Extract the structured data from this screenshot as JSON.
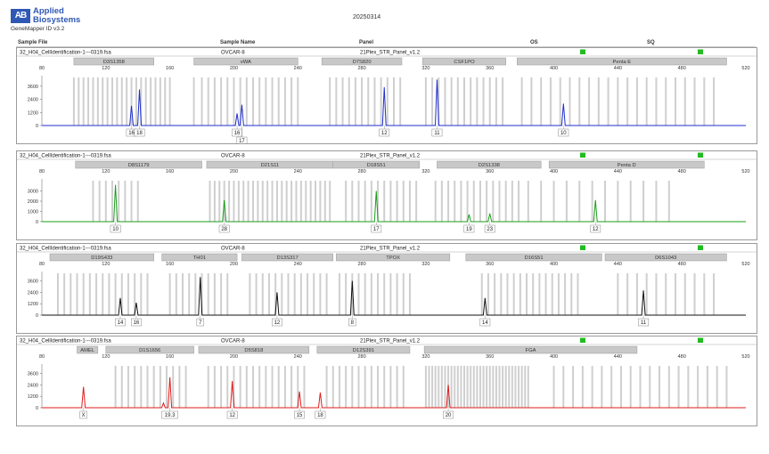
{
  "header": {
    "logo_mark": "AB",
    "brand_line1": "Applied",
    "brand_line2": "Biosystems",
    "app_version": "GeneMapper ID v3.2",
    "date": "20250314",
    "columns": [
      "Sample File",
      "Sample Name",
      "Panel",
      "OS",
      "SQ"
    ]
  },
  "colors": {
    "blue": "#1f2fcf",
    "green": "#1a9e1a",
    "black": "#111111",
    "red": "#e01b1b",
    "status": "#22bb22",
    "marker_fill": "#c8c8c8",
    "bin_line": "#cfcfcf"
  },
  "chart_data": [
    {
      "type": "line",
      "dye": "blue",
      "color": "#1f2fcf",
      "sample_file": "32_H04_CellIdentification-1---0319.fsa",
      "sample_name": "OVCAR-8",
      "panel": "21Plex_STR_Panel_v1.2",
      "xlim": [
        80,
        520
      ],
      "x_ticks": [
        80,
        120,
        160,
        200,
        240,
        280,
        320,
        360,
        400,
        440,
        480,
        520
      ],
      "ylim": [
        0,
        4400
      ],
      "y_ticks": [
        0,
        1200,
        2400,
        3600
      ],
      "markers": [
        {
          "name": "D3S1358",
          "start": 100,
          "end": 150
        },
        {
          "name": "vWA",
          "start": 175,
          "end": 240
        },
        {
          "name": "D7S820",
          "start": 255,
          "end": 305
        },
        {
          "name": "CSF1PO",
          "start": 318,
          "end": 370
        },
        {
          "name": "Penta E",
          "start": 377,
          "end": 508
        }
      ],
      "peaks": [
        {
          "x": 136,
          "y": 1800,
          "label": "16",
          "row": 1
        },
        {
          "x": 141,
          "y": 3300,
          "label": "18",
          "row": 1
        },
        {
          "x": 202,
          "y": 1100,
          "label": "16",
          "row": 1
        },
        {
          "x": 205,
          "y": 1900,
          "label": "17",
          "row": 2
        },
        {
          "x": 294,
          "y": 3500,
          "label": "12",
          "row": 1
        },
        {
          "x": 327,
          "y": 4200,
          "label": "11",
          "row": 1
        },
        {
          "x": 406,
          "y": 2000,
          "label": "10",
          "row": 1
        }
      ],
      "bins": [
        100,
        103,
        106,
        109,
        112,
        115,
        118,
        121,
        124,
        127,
        130,
        133,
        136,
        139,
        142,
        145,
        148,
        151,
        154,
        157,
        160,
        175,
        180,
        184,
        188,
        192,
        196,
        200,
        204,
        208,
        212,
        216,
        220,
        224,
        228,
        232,
        236,
        240,
        260,
        264,
        268,
        272,
        276,
        280,
        284,
        288,
        292,
        296,
        300,
        304,
        320,
        324,
        328,
        332,
        336,
        340,
        344,
        348,
        352,
        356,
        360,
        364,
        368,
        380,
        386,
        392,
        398,
        404,
        410,
        416,
        422,
        428,
        434,
        440,
        446,
        452,
        458,
        464,
        470,
        476,
        482,
        488,
        494,
        500
      ]
    },
    {
      "type": "line",
      "dye": "green",
      "color": "#1a9e1a",
      "sample_file": "32_H04_CellIdentification-1---0319.fsa",
      "sample_name": "OVCAR-8",
      "panel": "21Plex_STR_Panel_v1.2",
      "xlim": [
        80,
        520
      ],
      "x_ticks": [
        80,
        120,
        160,
        200,
        240,
        280,
        320,
        360,
        400,
        440,
        480,
        520
      ],
      "ylim": [
        0,
        4000
      ],
      "y_ticks": [
        0,
        1000,
        2000,
        3000
      ],
      "markers": [
        {
          "name": "D8S1179",
          "start": 101,
          "end": 180
        },
        {
          "name": "D21S11",
          "start": 183,
          "end": 262
        },
        {
          "name": "D18S51",
          "start": 262,
          "end": 316
        },
        {
          "name": "D2S1338",
          "start": 327,
          "end": 392
        },
        {
          "name": "Penta D",
          "start": 397,
          "end": 494
        }
      ],
      "peaks": [
        {
          "x": 126,
          "y": 3600,
          "label": "10",
          "row": 1
        },
        {
          "x": 194,
          "y": 2100,
          "label": "28",
          "row": 1
        },
        {
          "x": 289,
          "y": 3000,
          "label": "17",
          "row": 1
        },
        {
          "x": 347,
          "y": 700,
          "label": "19",
          "row": 1
        },
        {
          "x": 360,
          "y": 800,
          "label": "23",
          "row": 1
        },
        {
          "x": 426,
          "y": 2100,
          "label": "12",
          "row": 1
        }
      ],
      "bins": [
        112,
        116,
        120,
        124,
        128,
        132,
        136,
        140,
        185,
        188,
        191,
        194,
        197,
        200,
        203,
        206,
        209,
        212,
        215,
        218,
        221,
        224,
        227,
        230,
        233,
        236,
        239,
        242,
        245,
        248,
        251,
        254,
        257,
        260,
        270,
        274,
        278,
        282,
        286,
        290,
        294,
        298,
        302,
        306,
        310,
        314,
        326,
        330,
        334,
        338,
        342,
        346,
        350,
        354,
        358,
        362,
        366,
        370,
        374,
        378,
        384,
        392,
        400,
        408,
        416,
        424,
        432,
        440,
        448,
        456,
        464,
        472
      ]
    },
    {
      "type": "line",
      "dye": "black",
      "color": "#111111",
      "sample_file": "32_H04_CellIdentification-1---0319.fsa",
      "sample_name": "OVCAR-8",
      "panel": "21Plex_STR_Panel_v1.2",
      "xlim": [
        80,
        520
      ],
      "x_ticks": [
        80,
        120,
        160,
        200,
        240,
        280,
        320,
        360,
        400,
        440,
        480,
        520
      ],
      "ylim": [
        0,
        4400
      ],
      "y_ticks": [
        0,
        1200,
        2400,
        3600
      ],
      "markers": [
        {
          "name": "D19S433",
          "start": 85,
          "end": 150
        },
        {
          "name": "TH01",
          "start": 155,
          "end": 202
        },
        {
          "name": "D13S317",
          "start": 205,
          "end": 262
        },
        {
          "name": "TPOX",
          "start": 264,
          "end": 335
        },
        {
          "name": "D16S51",
          "start": 345,
          "end": 430
        },
        {
          "name": "D6S1043",
          "start": 432,
          "end": 508
        }
      ],
      "peaks": [
        {
          "x": 129,
          "y": 1800,
          "label": "14",
          "row": 1
        },
        {
          "x": 139,
          "y": 1300,
          "label": "16",
          "row": 1
        },
        {
          "x": 179,
          "y": 4000,
          "label": "7",
          "row": 1
        },
        {
          "x": 227,
          "y": 2400,
          "label": "12",
          "row": 1
        },
        {
          "x": 274,
          "y": 3600,
          "label": "8",
          "row": 1
        },
        {
          "x": 357,
          "y": 1800,
          "label": "14",
          "row": 1
        },
        {
          "x": 456,
          "y": 2600,
          "label": "11",
          "row": 1
        }
      ],
      "bins": [
        90,
        94,
        98,
        102,
        106,
        110,
        114,
        118,
        122,
        126,
        130,
        134,
        138,
        142,
        146,
        160,
        164,
        168,
        172,
        176,
        180,
        184,
        188,
        192,
        196,
        210,
        214,
        218,
        222,
        226,
        230,
        234,
        238,
        242,
        246,
        250,
        254,
        258,
        266,
        270,
        274,
        278,
        282,
        286,
        290,
        294,
        298,
        302,
        306,
        310,
        355,
        359,
        363,
        367,
        371,
        375,
        379,
        383,
        387,
        391,
        395,
        399,
        403,
        407,
        411,
        415,
        440,
        446,
        452,
        458,
        464,
        470,
        476,
        482,
        488,
        494,
        500
      ]
    },
    {
      "type": "line",
      "dye": "red",
      "color": "#e01b1b",
      "sample_file": "32_H04_CellIdentification-1---0319.fsa",
      "sample_name": "OVCAR-8",
      "panel": "21Plex_STR_Panel_v1.2",
      "xlim": [
        80,
        520
      ],
      "x_ticks": [
        80,
        120,
        160,
        200,
        240,
        280,
        320,
        360,
        400,
        440,
        480,
        520
      ],
      "ylim": [
        0,
        4400
      ],
      "y_ticks": [
        0,
        1200,
        2400,
        3600
      ],
      "markers": [
        {
          "name": "AMEL",
          "start": 102,
          "end": 115
        },
        {
          "name": "D1S1656",
          "start": 120,
          "end": 175
        },
        {
          "name": "D5S818",
          "start": 178,
          "end": 247
        },
        {
          "name": "D12S391",
          "start": 252,
          "end": 310
        },
        {
          "name": "FGA",
          "start": 319,
          "end": 452
        }
      ],
      "peaks": [
        {
          "x": 106,
          "y": 2200,
          "label": "X",
          "row": 1
        },
        {
          "x": 156,
          "y": 500,
          "label": "",
          "row": 1
        },
        {
          "x": 160,
          "y": 3200,
          "label": "19.3",
          "row": 1
        },
        {
          "x": 199,
          "y": 2800,
          "label": "12",
          "row": 1
        },
        {
          "x": 241,
          "y": 1700,
          "label": "15",
          "row": 1
        },
        {
          "x": 254,
          "y": 1600,
          "label": "18",
          "row": 1
        },
        {
          "x": 334,
          "y": 2400,
          "label": "20",
          "row": 1
        }
      ],
      "bins": [
        126,
        130,
        134,
        138,
        142,
        146,
        150,
        154,
        158,
        162,
        166,
        170,
        184,
        188,
        192,
        196,
        200,
        204,
        208,
        212,
        216,
        220,
        224,
        228,
        232,
        236,
        240,
        244,
        258,
        262,
        266,
        270,
        274,
        278,
        282,
        286,
        290,
        294,
        298,
        302,
        306,
        320,
        322,
        324,
        326,
        328,
        330,
        332,
        334,
        336,
        338,
        340,
        342,
        344,
        346,
        348,
        350,
        352,
        354,
        356,
        358,
        360,
        362,
        364,
        366,
        368,
        370,
        372,
        374,
        376,
        378,
        380,
        382,
        384,
        400,
        406,
        412,
        418,
        424,
        430,
        436,
        442,
        448,
        454,
        460,
        466,
        472,
        478,
        484,
        490,
        496,
        502,
        508
      ]
    }
  ]
}
